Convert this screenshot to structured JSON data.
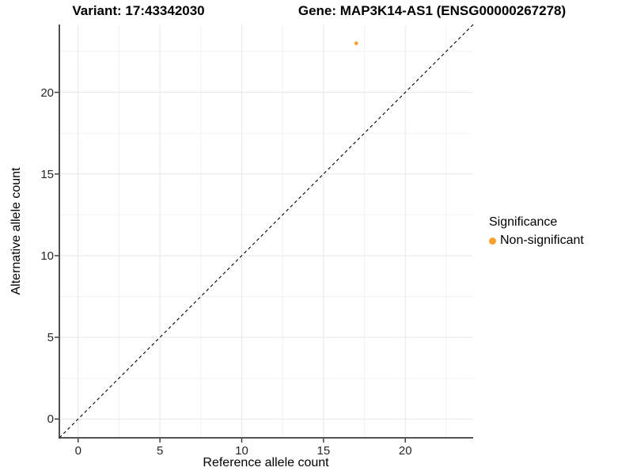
{
  "header": {
    "variant_title": "Variant: 17:43342030",
    "gene_title": "Gene: MAP3K14-AS1 (ENSG00000267278)"
  },
  "chart_data": {
    "type": "scatter",
    "points": [
      {
        "x": 17,
        "y": 23,
        "series": "Non-significant"
      }
    ],
    "xlabel": "Reference allele count",
    "ylabel": "Alternative allele count",
    "xlim": [
      -1.15,
      24.15
    ],
    "ylim": [
      -1.15,
      24.15
    ],
    "x_ticks": [
      0,
      5,
      10,
      15,
      20
    ],
    "y_ticks": [
      0,
      5,
      10,
      15,
      20
    ],
    "x_minor_ticks": [
      2.5,
      7.5,
      12.5,
      17.5,
      22.5
    ],
    "y_minor_ticks": [
      2.5,
      7.5,
      12.5,
      17.5,
      22.5
    ],
    "grid": "major+minor",
    "identity_line": {
      "style": "dashed",
      "from": [
        -1.15,
        -1.15
      ],
      "to": [
        24.15,
        24.15
      ],
      "color": "#000000"
    },
    "legend": {
      "title": "Significance",
      "position": "right",
      "entries": [
        {
          "label": "Non-significant",
          "color": "#F8A12E",
          "shape": "circle"
        }
      ]
    },
    "colors": {
      "point": "#F8A12E",
      "major_grid": "#E7E7E7",
      "minor_grid": "#F2F2F2",
      "axis_line": "#3C3C3C",
      "tick_mark": "#333333"
    },
    "point_radius_px": 2.4,
    "legend_point_radius_px": 4.5
  }
}
